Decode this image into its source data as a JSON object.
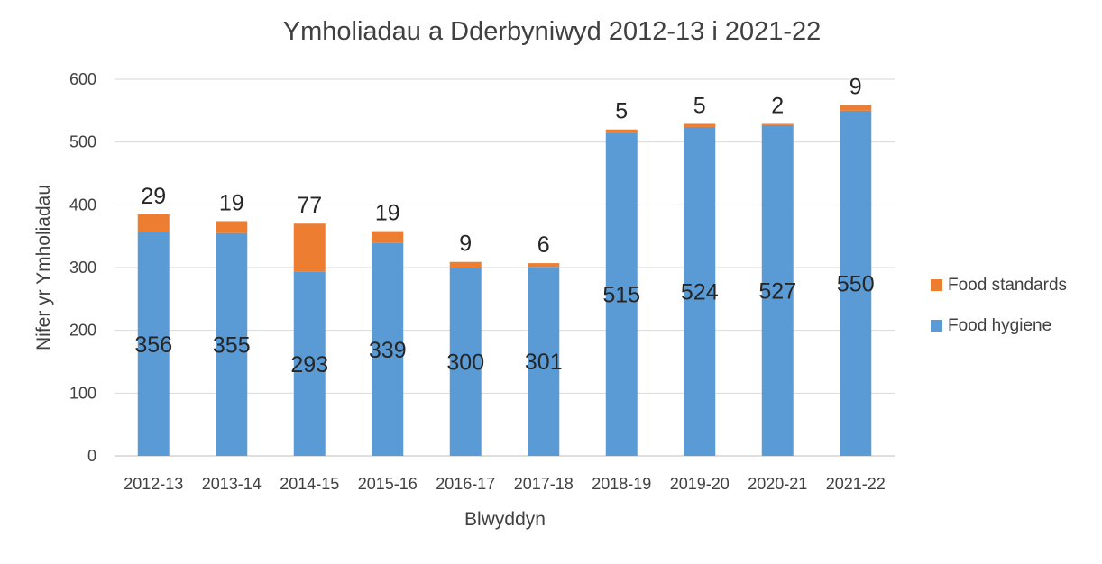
{
  "chart_data": {
    "type": "bar",
    "stacked": true,
    "title": "Ymholiadau a Dderbyniwyd 2012-13 i 2021-22",
    "xlabel": "Blwyddyn",
    "ylabel": "Nifer yr Ymholiadau",
    "ylim": [
      0,
      600
    ],
    "yticks": [
      "0",
      "100",
      "200",
      "300",
      "400",
      "500",
      "600"
    ],
    "grid": true,
    "legend_position": "right",
    "categories": [
      "2012-13",
      "2013-14",
      "2014-15",
      "2015-16",
      "2016-17",
      "2017-18",
      "2018-19",
      "2019-20",
      "2020-21",
      "2021-22"
    ],
    "series": [
      {
        "name": "Food hygiene",
        "color": "#5B9BD5",
        "values": [
          356,
          355,
          293,
          339,
          300,
          301,
          515,
          524,
          527,
          550
        ]
      },
      {
        "name": "Food standards",
        "color": "#ED7D31",
        "values": [
          29,
          19,
          77,
          19,
          9,
          6,
          5,
          5,
          2,
          9
        ]
      }
    ],
    "legend_order": [
      "Food standards",
      "Food hygiene"
    ]
  }
}
